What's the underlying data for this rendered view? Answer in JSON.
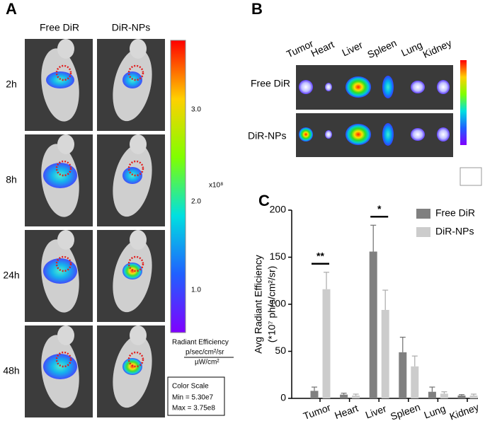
{
  "panel_a": {
    "label": "A",
    "columns": [
      "Free DiR",
      "DiR-NPs"
    ],
    "rows": [
      "2h",
      "8h",
      "24h",
      "48h"
    ],
    "colorbar": {
      "ticks": [
        "3.0",
        "2.0",
        "1.0"
      ],
      "multiplier": "x10⁸",
      "title": "Radiant Efficiency",
      "unit_num": "p/sec/cm²/sr",
      "unit_den": "µW/cm²"
    },
    "scale_box": [
      "Color Scale",
      "Min = 5.30e7",
      "Max = 3.75e8"
    ]
  },
  "panel_b": {
    "label": "B",
    "organs": [
      "Tumor",
      "Heart",
      "Liver",
      "Spleen",
      "Lung",
      "Kidney"
    ],
    "rows": [
      "Free DiR",
      "DiR-NPs"
    ]
  },
  "chart_data": {
    "type": "bar",
    "panel_label": "C",
    "y_label": [
      "Avg Radiant Efficiency",
      "(*10⁷ ph/s/cm²/sr)"
    ],
    "categories": [
      "Tumor",
      "Heart",
      "Liver",
      "Spleen",
      "Lung",
      "Kidney"
    ],
    "series": [
      {
        "name": "Free DiR",
        "color": "#808080",
        "values": [
          8,
          4,
          156,
          49,
          7,
          3
        ],
        "errors": [
          4,
          1.5,
          28,
          16,
          5,
          1
        ]
      },
      {
        "name": "DiR-NPs",
        "color": "#cccccc",
        "values": [
          116,
          3,
          94,
          34,
          5,
          3
        ],
        "errors": [
          18,
          1.5,
          21,
          11,
          2,
          1.5
        ]
      }
    ],
    "annotations": [
      {
        "text": "**",
        "category": 0
      },
      {
        "text": "*",
        "category": 2
      }
    ],
    "ylim": [
      0,
      200
    ],
    "yticks": [
      0,
      50,
      100,
      150,
      200
    ],
    "legend": "upper right"
  }
}
